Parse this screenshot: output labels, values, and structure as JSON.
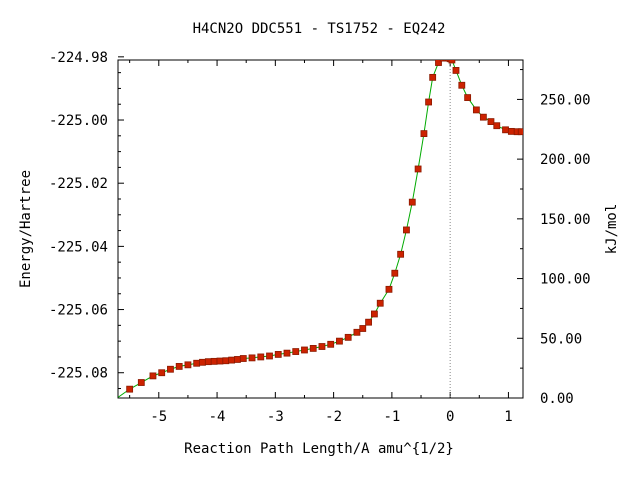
{
  "chart_data": {
    "type": "line",
    "title": "H4CN2O   DDC551 - TS1752 - EQ242",
    "xlabel": "Reaction Path Length/A amu^{1/2}",
    "ylabel": "Energy/Hartree",
    "ylabel_right": "kJ/mol",
    "xlim": [
      -5.7,
      1.25
    ],
    "ylim": [
      -225.088,
      -224.981
    ],
    "xticks": [
      {
        "value": -5,
        "label": "-5"
      },
      {
        "value": -4,
        "label": "-4"
      },
      {
        "value": -3,
        "label": "-3"
      },
      {
        "value": -2,
        "label": "-2"
      },
      {
        "value": -1,
        "label": "-1"
      },
      {
        "value": 0,
        "label": "0"
      },
      {
        "value": 1,
        "label": "1"
      }
    ],
    "yticks": [
      {
        "value": -224.98,
        "label": "-224.98"
      },
      {
        "value": -225.0,
        "label": "-225.00"
      },
      {
        "value": -225.02,
        "label": "-225.02"
      },
      {
        "value": -225.04,
        "label": "-225.04"
      },
      {
        "value": -225.06,
        "label": "-225.06"
      },
      {
        "value": -225.08,
        "label": "-225.08"
      }
    ],
    "yticks_right": [
      {
        "value": 0,
        "label": "0.00"
      },
      {
        "value": 50,
        "label": "50.00"
      },
      {
        "value": 100,
        "label": "100.00"
      },
      {
        "value": 150,
        "label": "150.00"
      },
      {
        "value": 200,
        "label": "200.00"
      },
      {
        "value": 250,
        "label": "250.00"
      }
    ],
    "y2lim": [
      0,
      283
    ],
    "grid": false,
    "ts_marker_x": 0,
    "colors": {
      "line": "#00aa00",
      "marker": "#cc2200",
      "marker_edge": "#8b1a00",
      "ts_line": "#888888"
    },
    "series": [
      {
        "x": [
          -5.5,
          -5.3,
          -5.1,
          -4.95,
          -4.8,
          -4.65,
          -4.5,
          -4.35,
          -4.25,
          -4.15,
          -4.05,
          -3.95,
          -3.85,
          -3.75,
          -3.65,
          -3.55,
          -3.4,
          -3.25,
          -3.1,
          -2.95,
          -2.8,
          -2.65,
          -2.5,
          -2.35,
          -2.2,
          -2.05,
          -1.9,
          -1.75,
          -1.6,
          -1.5,
          -1.4,
          -1.3,
          -1.2,
          -1.05,
          -0.95,
          -0.85,
          -0.75,
          -0.65,
          -0.55,
          -0.45,
          -0.37,
          -0.3,
          -0.2,
          -0.12,
          -0.07,
          -0.03,
          0.0,
          0.03,
          0.1,
          0.2,
          0.3,
          0.45,
          0.57,
          0.7,
          0.8,
          0.95,
          1.05,
          1.15,
          1.22
        ],
        "y": [
          -225.0852,
          -225.0831,
          -225.081,
          -225.08,
          -225.0789,
          -225.078,
          -225.0775,
          -225.077,
          -225.0767,
          -225.0765,
          -225.0764,
          -225.0763,
          -225.0762,
          -225.076,
          -225.0758,
          -225.0755,
          -225.0753,
          -225.075,
          -225.0747,
          -225.0742,
          -225.0738,
          -225.0733,
          -225.0728,
          -225.0723,
          -225.0717,
          -225.071,
          -225.07,
          -225.0688,
          -225.0672,
          -225.066,
          -225.064,
          -225.0614,
          -225.058,
          -225.0536,
          -225.0485,
          -225.0425,
          -225.0348,
          -225.026,
          -225.0155,
          -225.0043,
          -224.9943,
          -224.9865,
          -224.9818,
          -224.9804,
          -224.9803,
          -224.9804,
          -224.9806,
          -224.981,
          -224.9843,
          -224.989,
          -224.9929,
          -224.9968,
          -224.9991,
          -225.0005,
          -225.0018,
          -225.0031,
          -225.0036,
          -225.0037,
          -225.0037
        ]
      }
    ]
  }
}
